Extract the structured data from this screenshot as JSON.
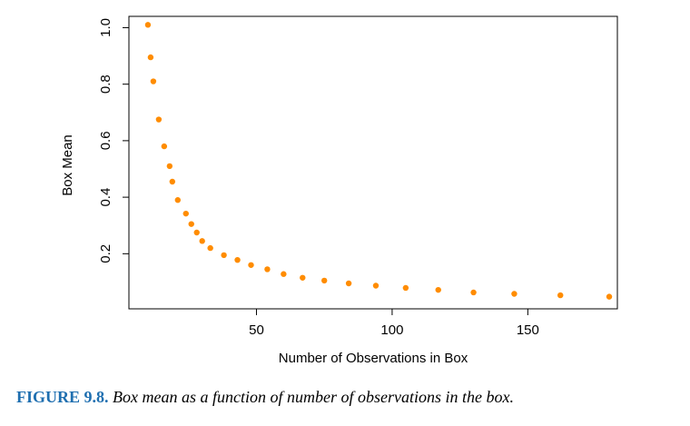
{
  "chart_data": {
    "type": "scatter",
    "title": "",
    "xlabel": "Number of Observations in Box",
    "ylabel": "Box Mean",
    "xlim": [
      3,
      183
    ],
    "ylim": [
      0.005,
      1.04
    ],
    "xticks": [
      50,
      100,
      150
    ],
    "xtick_labels": [
      "50",
      "100",
      "150"
    ],
    "yticks": [
      0.2,
      0.4,
      0.6,
      0.8,
      1.0
    ],
    "ytick_labels": [
      "0.2",
      "0.4",
      "0.6",
      "0.8",
      "1.0"
    ],
    "grid": false,
    "legend": "none",
    "marker_color": "#ff8c00",
    "series": [
      {
        "x": [
          10,
          11,
          12,
          14,
          16,
          18,
          19,
          21,
          24,
          26,
          28,
          30,
          33,
          38,
          43,
          48,
          54,
          60,
          67,
          75,
          84,
          94,
          105,
          117,
          130,
          145,
          162,
          180
        ],
        "y": [
          1.01,
          0.895,
          0.81,
          0.675,
          0.58,
          0.51,
          0.455,
          0.39,
          0.342,
          0.305,
          0.275,
          0.245,
          0.22,
          0.195,
          0.178,
          0.16,
          0.145,
          0.128,
          0.115,
          0.105,
          0.095,
          0.087,
          0.079,
          0.072,
          0.063,
          0.058,
          0.053,
          0.048
        ]
      }
    ]
  },
  "caption": {
    "label": "FIGURE 9.8.",
    "text": "Box mean as a function of number of observations in the box."
  }
}
